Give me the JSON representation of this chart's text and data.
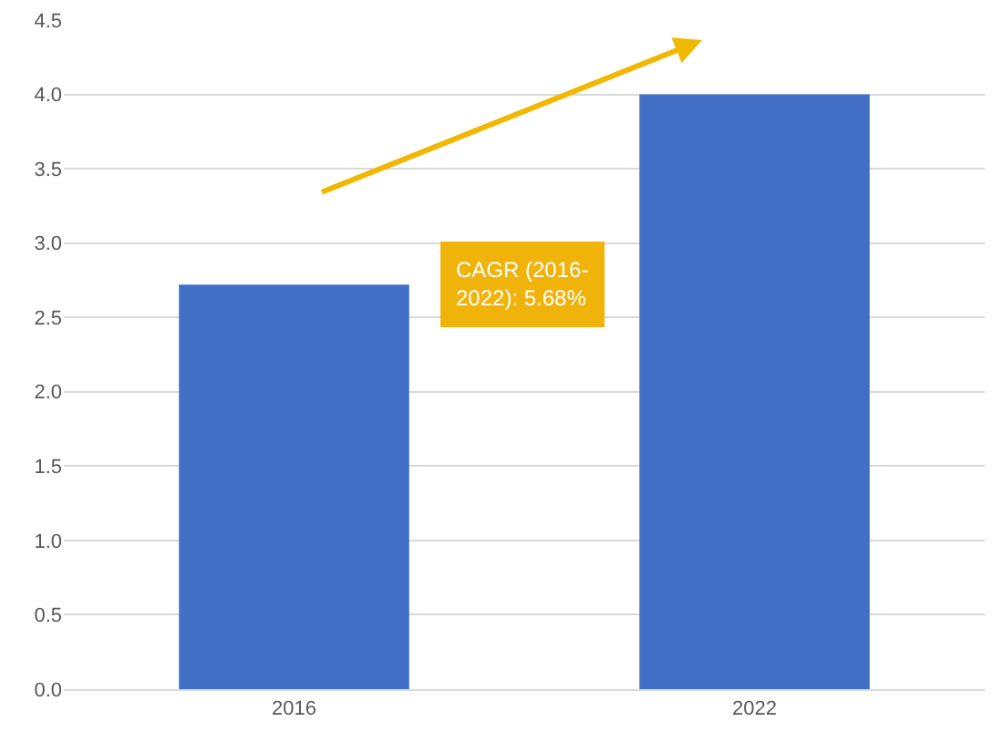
{
  "chart_data": {
    "type": "bar",
    "categories": [
      "2016",
      "2022"
    ],
    "values": [
      2.72,
      4.0
    ],
    "color": "#4170c6",
    "ylim": [
      0,
      4.5
    ],
    "yticks": [
      {
        "value": 0,
        "label": "0.0"
      },
      {
        "value": 0.5,
        "label": "0.5"
      },
      {
        "value": 1,
        "label": "1.0"
      },
      {
        "value": 1.5,
        "label": "1.5"
      },
      {
        "value": 2,
        "label": "2.0"
      },
      {
        "value": 2.5,
        "label": "2.5"
      },
      {
        "value": 3,
        "label": "3.0"
      },
      {
        "value": 3.5,
        "label": "3.5"
      },
      {
        "value": 4,
        "label": "4.0"
      },
      {
        "value": 4.5,
        "label": "4.5"
      }
    ],
    "grid": "y",
    "annotations": [
      "CAGR (2016-2022): 5.68%"
    ]
  }
}
